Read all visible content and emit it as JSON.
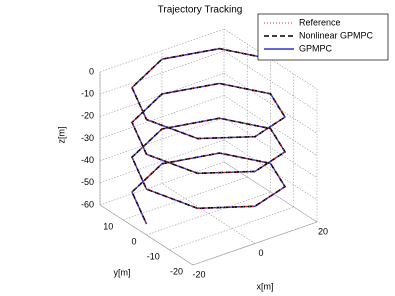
{
  "chart_data": {
    "type": "line3d",
    "title": "Trajectory Tracking",
    "x_label": "x[m]",
    "y_label": "y[m]",
    "z_label": "z[m]",
    "xlim": [
      -20,
      20
    ],
    "xticks": [
      -20,
      0,
      20
    ],
    "ylim": [
      -20,
      20
    ],
    "yticks": [
      -20,
      -10,
      0,
      10
    ],
    "zlim": [
      -60,
      0
    ],
    "zticks": [
      -60,
      -50,
      -40,
      -30,
      -20,
      -10,
      0
    ],
    "grid": true,
    "legend": "upper right",
    "series": [
      {
        "name": "Reference",
        "color": "#e03030",
        "style": "dotted",
        "x": [
          20,
          14.1,
          0,
          -14.1,
          -20,
          -14.1,
          0,
          14.1,
          20,
          14.1,
          0,
          -14.1,
          -20,
          -14.1,
          0,
          14.1,
          20,
          14.1,
          0,
          -14.1,
          -20,
          -14.1,
          0,
          14.1,
          20,
          14.1,
          0,
          -14.1,
          -20
        ],
        "y": [
          0,
          14.1,
          20,
          14.1,
          0,
          -14.1,
          -20,
          -14.1,
          0,
          14.1,
          20,
          14.1,
          0,
          -14.1,
          -20,
          -14.1,
          0,
          14.1,
          20,
          14.1,
          0,
          -14.1,
          -20,
          -14.1,
          0,
          14.1,
          20,
          14.1,
          0
        ],
        "z": [
          0,
          -2,
          -3.9,
          -5.9,
          -7.9,
          -9.8,
          -11.8,
          -13.8,
          -15.7,
          -17.7,
          -19.6,
          -21.6,
          -23.6,
          -25.5,
          -27.5,
          -29.5,
          -31.4,
          -33.4,
          -35.4,
          -37.3,
          -39.3,
          -41.3,
          -43.2,
          -45.2,
          -47.1,
          -49.1,
          -51.1,
          -53,
          -55
        ]
      },
      {
        "name": "Nonlinear GPMPC",
        "color": "#000000",
        "style": "dashed",
        "x": [
          20,
          14.1,
          0,
          -14.1,
          -20,
          -14.1,
          0,
          14.1,
          20,
          14.1,
          0,
          -14.1,
          -20,
          -14.1,
          0,
          14.1,
          20,
          14.1,
          0,
          -14.1,
          -20,
          -14.1,
          0,
          14.1,
          20,
          14.1,
          0,
          -14.1,
          -20
        ],
        "y": [
          0,
          14.1,
          20,
          14.1,
          0,
          -14.1,
          -20,
          -14.1,
          0,
          14.1,
          20,
          14.1,
          0,
          -14.1,
          -20,
          -14.1,
          0,
          14.1,
          20,
          14.1,
          0,
          -14.1,
          -20,
          -14.1,
          0,
          14.1,
          20,
          14.1,
          0
        ],
        "z": [
          0,
          -2,
          -3.9,
          -5.9,
          -7.9,
          -9.8,
          -11.8,
          -13.8,
          -15.7,
          -17.7,
          -19.6,
          -21.6,
          -23.6,
          -25.5,
          -27.5,
          -29.5,
          -31.4,
          -33.4,
          -35.4,
          -37.3,
          -39.3,
          -41.3,
          -43.2,
          -45.2,
          -47.1,
          -49.1,
          -51.1,
          -53,
          -55
        ]
      },
      {
        "name": "GPMPC",
        "color": "#3030d8",
        "style": "solid",
        "x": [
          20,
          14.1,
          0,
          -14.1,
          -20,
          -14.1,
          0,
          14.1,
          20,
          14.1,
          0,
          -14.1,
          -20,
          -14.1,
          0,
          14.1,
          20,
          14.1,
          0,
          -14.1,
          -20,
          -14.1,
          0,
          14.1,
          20,
          14.1,
          0,
          -14.1,
          -20
        ],
        "y": [
          0,
          14.1,
          20,
          14.1,
          0,
          -14.1,
          -20,
          -14.1,
          0,
          14.1,
          20,
          14.1,
          0,
          -14.1,
          -20,
          -14.1,
          0,
          14.1,
          20,
          14.1,
          0,
          -14.1,
          -20,
          -14.1,
          0,
          14.1,
          20,
          14.1,
          0
        ],
        "z": [
          0,
          -2,
          -3.9,
          -5.9,
          -7.9,
          -9.8,
          -11.8,
          -13.8,
          -15.7,
          -17.7,
          -19.6,
          -21.6,
          -23.6,
          -25.5,
          -27.5,
          -29.5,
          -31.4,
          -33.4,
          -35.4,
          -37.3,
          -39.3,
          -41.3,
          -43.2,
          -45.2,
          -47.1,
          -49.1,
          -51.1,
          -53,
          -55
        ]
      }
    ]
  }
}
